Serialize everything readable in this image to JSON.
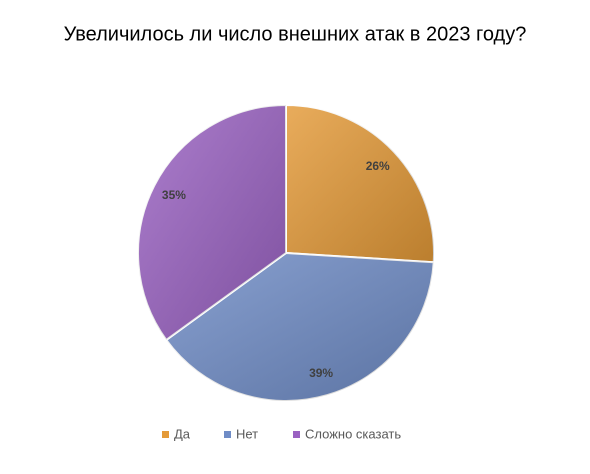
{
  "chart_data": {
    "type": "pie",
    "title": "Увеличилось ли число внешних атак в 2023 году?",
    "categories": [
      "Да",
      "Нет",
      "Сложно сказать"
    ],
    "values": [
      26,
      39,
      35
    ],
    "value_labels": [
      "26%",
      "39%",
      "35%"
    ],
    "colors": [
      "#e49a38",
      "#6f8cc6",
      "#9a62c2"
    ],
    "legend": "bottom"
  }
}
